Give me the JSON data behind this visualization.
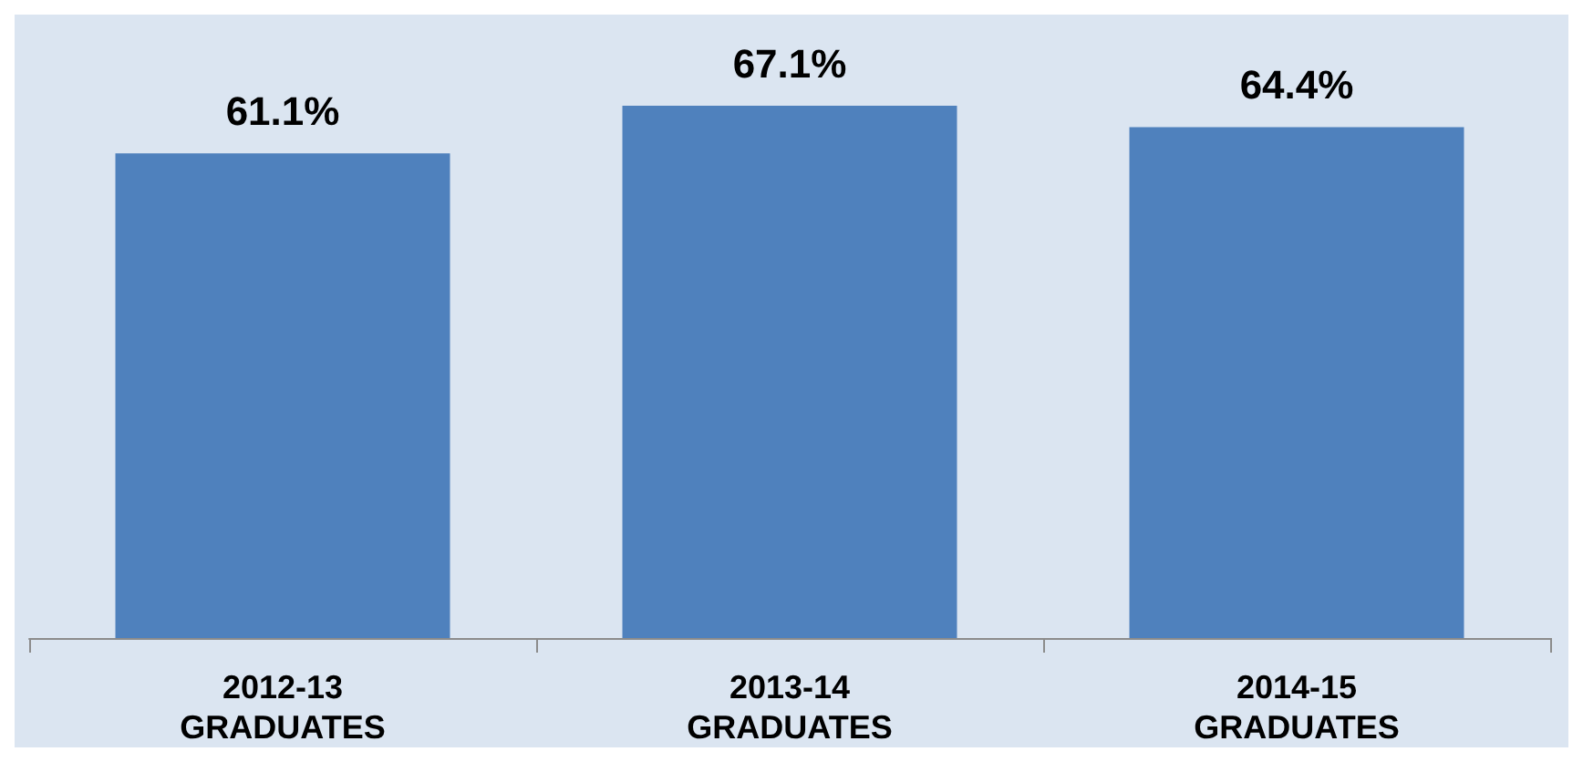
{
  "chart_data": {
    "type": "bar",
    "categories": [
      "2012-13\nGRADUATES",
      "2013-14\nGRADUATES",
      "2014-15\nGRADUATES"
    ],
    "values": [
      61.1,
      67.1,
      64.4
    ],
    "color": "#4f81bd",
    "value_labels": [
      "61.1%",
      "67.1%",
      "64.4%"
    ]
  }
}
